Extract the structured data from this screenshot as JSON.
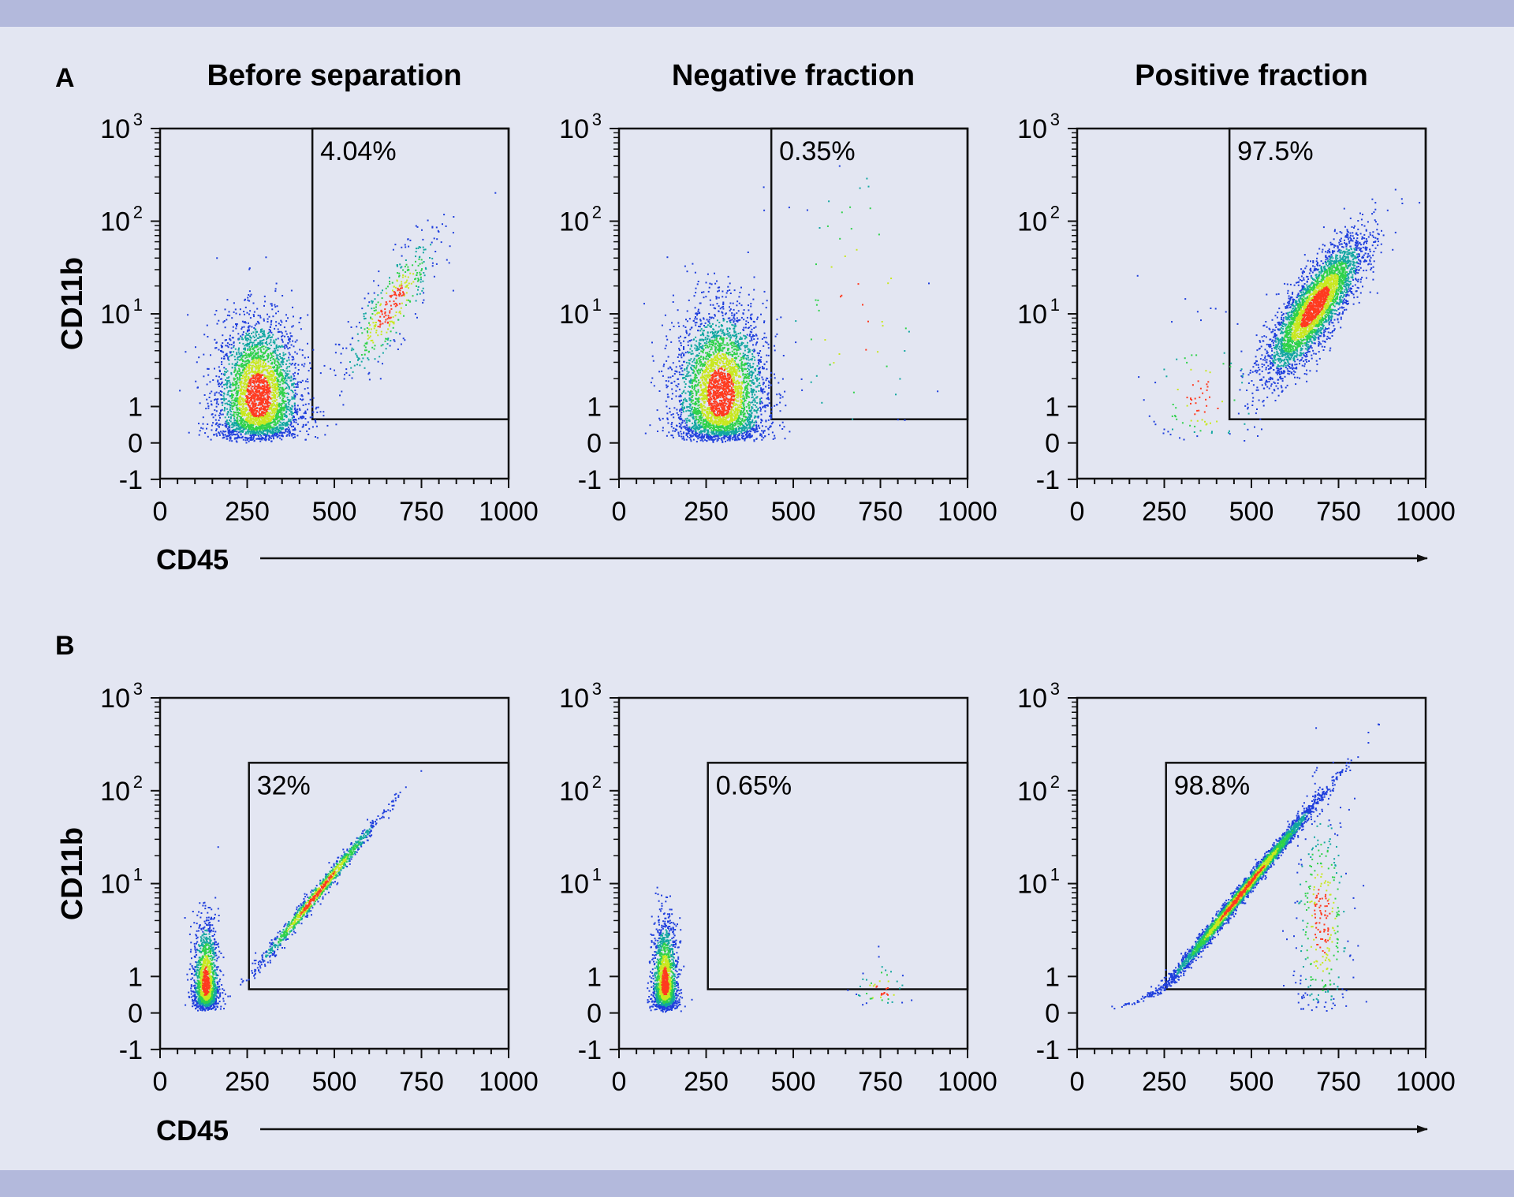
{
  "panel_labels": [
    "A",
    "B"
  ],
  "column_titles": [
    "Before separation",
    "Negative fraction",
    "Positive fraction"
  ],
  "xlabel": "CD45",
  "ylabel": "CD11b",
  "colors": {
    "background": "#e3e6f2",
    "band": "#b3b9dc",
    "panel_label": "#3b3486",
    "frame": "#111111"
  },
  "chart_data": [
    {
      "type": "scatter",
      "row": "A",
      "column": "Before separation",
      "xlim": [
        0,
        1000
      ],
      "x_ticks": [
        "0",
        "250",
        "500",
        "750",
        "1000"
      ],
      "y_ticks": [
        "-1",
        "0",
        "1",
        "10",
        "10",
        "10"
      ],
      "y_tick_exponents": [
        "",
        "",
        "",
        "1",
        "2",
        "3"
      ],
      "y_scale": "log (CD11b)",
      "gate": {
        "x_range": [
          437,
          1000
        ],
        "y_lower": 0.65,
        "y_upper": 1000
      },
      "gate_percent": "4.04%",
      "populations": [
        {
          "center_x": 280,
          "center_y": 1.3,
          "spread_x": 60,
          "spread_y": 0.3,
          "n": 3200,
          "note": "CD45 low cluster"
        },
        {
          "center_x": 660,
          "center_y": 12,
          "spread_x": 70,
          "spread_y": 0.45,
          "n": 420,
          "slope": 1.2,
          "note": "gated CD11b+ diagonal"
        }
      ]
    },
    {
      "type": "scatter",
      "row": "A",
      "column": "Negative fraction",
      "xlim": [
        0,
        1000
      ],
      "x_ticks": [
        "0",
        "250",
        "500",
        "750",
        "1000"
      ],
      "y_ticks": [
        "-1",
        "0",
        "1",
        "10",
        "10",
        "10"
      ],
      "y_tick_exponents": [
        "",
        "",
        "",
        "1",
        "2",
        "3"
      ],
      "y_scale": "log (CD11b)",
      "gate": {
        "x_range": [
          437,
          1000
        ],
        "y_lower": 0.65,
        "y_upper": 1000
      },
      "gate_percent": "0.35%",
      "populations": [
        {
          "center_x": 290,
          "center_y": 1.4,
          "spread_x": 65,
          "spread_y": 0.33,
          "n": 3600,
          "note": "CD45 low cluster"
        },
        {
          "center_x": 680,
          "center_y": 12,
          "spread_x": 110,
          "spread_y": 0.6,
          "n": 60,
          "note": "sparse events in gate"
        }
      ]
    },
    {
      "type": "scatter",
      "row": "A",
      "column": "Positive fraction",
      "xlim": [
        0,
        1000
      ],
      "x_ticks": [
        "0",
        "250",
        "500",
        "750",
        "1000"
      ],
      "y_ticks": [
        "-1",
        "0",
        "1",
        "10",
        "10",
        "10"
      ],
      "y_tick_exponents": [
        "",
        "",
        "",
        "1",
        "2",
        "3"
      ],
      "y_scale": "log (CD11b)",
      "gate": {
        "x_range": [
          437,
          1000
        ],
        "y_lower": 0.65,
        "y_upper": 1000
      },
      "gate_percent": "97.5%",
      "populations": [
        {
          "center_x": 680,
          "center_y": 12,
          "spread_x": 70,
          "spread_y": 0.42,
          "n": 3600,
          "slope": 1.1,
          "note": "CD11b+ CD45+ population"
        },
        {
          "center_x": 360,
          "center_y": 1.2,
          "spread_x": 80,
          "spread_y": 0.3,
          "n": 110,
          "note": "few ungated events"
        }
      ]
    },
    {
      "type": "scatter",
      "row": "B",
      "column": "Before separation",
      "xlim": [
        0,
        1000
      ],
      "x_ticks": [
        "0",
        "250",
        "500",
        "750",
        "1000"
      ],
      "y_ticks": [
        "-1",
        "0",
        "1",
        "10",
        "10",
        "10"
      ],
      "y_tick_exponents": [
        "",
        "",
        "",
        "1",
        "2",
        "3"
      ],
      "y_scale": "log (CD11b)",
      "gate": {
        "x_range": [
          255,
          1000
        ],
        "y_lower": 0.65,
        "y_upper": 200
      },
      "gate_percent": "32%",
      "populations": [
        {
          "center_x": 130,
          "center_y": 0.8,
          "spread_x": 18,
          "spread_y": 0.25,
          "n": 1400,
          "note": "CD45 dim cluster"
        },
        {
          "center_x": 450,
          "center_y": 8,
          "spread_x": 90,
          "spread_y": 0.1,
          "n": 1000,
          "slope": 1.15,
          "note": "diagonal CD11b+ cells"
        }
      ]
    },
    {
      "type": "scatter",
      "row": "B",
      "column": "Negative fraction",
      "xlim": [
        0,
        1000
      ],
      "x_ticks": [
        "0",
        "250",
        "500",
        "750",
        "1000"
      ],
      "y_ticks": [
        "-1",
        "0",
        "1",
        "10",
        "10",
        "10"
      ],
      "y_tick_exponents": [
        "",
        "",
        "",
        "1",
        "2",
        "3"
      ],
      "y_scale": "log (CD11b)",
      "gate": {
        "x_range": [
          255,
          1000
        ],
        "y_lower": 0.65,
        "y_upper": 200
      },
      "gate_percent": "0.65%",
      "populations": [
        {
          "center_x": 130,
          "center_y": 0.8,
          "spread_x": 18,
          "spread_y": 0.25,
          "n": 1600,
          "note": "CD45 dim cluster"
        },
        {
          "center_x": 750,
          "center_y": 0.6,
          "spread_x": 40,
          "spread_y": 0.15,
          "n": 50,
          "note": "sparse events"
        }
      ]
    },
    {
      "type": "scatter",
      "row": "B",
      "column": "Positive fraction",
      "xlim": [
        0,
        1000
      ],
      "x_ticks": [
        "0",
        "250",
        "500",
        "750",
        "1000"
      ],
      "y_ticks": [
        "-1",
        "0",
        "1",
        "10",
        "10",
        "10"
      ],
      "y_tick_exponents": [
        "",
        "",
        "",
        "1",
        "2",
        "3"
      ],
      "y_scale": "log (CD11b)",
      "gate": {
        "x_range": [
          255,
          1000
        ],
        "y_lower": 0.65,
        "y_upper": 200
      },
      "gate_percent": "98.8%",
      "populations": [
        {
          "center_x": 470,
          "center_y": 8,
          "spread_x": 110,
          "spread_y": 0.1,
          "n": 3400,
          "slope": 1.15,
          "note": "diagonal CD11b+ CD45+ cells"
        },
        {
          "center_x": 700,
          "center_y": 4,
          "spread_x": 40,
          "spread_y": 0.45,
          "n": 350,
          "note": "secondary cluster"
        }
      ]
    }
  ]
}
